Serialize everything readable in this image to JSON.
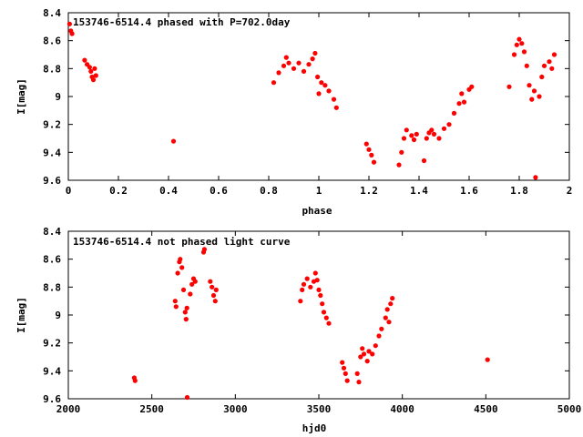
{
  "chart_data": [
    {
      "type": "scatter",
      "title": "153746-6514.4 phased with P=702.0day",
      "xlabel": "phase",
      "ylabel": "I[mag]",
      "xlim": [
        0,
        2
      ],
      "ylim": [
        9.6,
        8.4
      ],
      "y_inverted": true,
      "xticks": [
        "0",
        "0.2",
        "0.4",
        "0.6",
        "0.8",
        "1",
        "1.2",
        "1.4",
        "1.6",
        "1.8",
        "2"
      ],
      "yticks": [
        "8.4",
        "8.6",
        "8.8",
        "9",
        "9.2",
        "9.4",
        "9.6"
      ],
      "marker_color": "#ff0000",
      "points": [
        [
          0.005,
          8.48
        ],
        [
          0.01,
          8.53
        ],
        [
          0.015,
          8.55
        ],
        [
          0.065,
          8.74
        ],
        [
          0.075,
          8.77
        ],
        [
          0.085,
          8.79
        ],
        [
          0.09,
          8.82
        ],
        [
          0.095,
          8.86
        ],
        [
          0.1,
          8.88
        ],
        [
          0.105,
          8.8
        ],
        [
          0.11,
          8.85
        ],
        [
          0.42,
          9.32
        ],
        [
          0.82,
          8.9
        ],
        [
          0.84,
          8.83
        ],
        [
          0.86,
          8.78
        ],
        [
          0.87,
          8.72
        ],
        [
          0.88,
          8.76
        ],
        [
          0.9,
          8.8
        ],
        [
          0.92,
          8.76
        ],
        [
          0.94,
          8.82
        ],
        [
          0.96,
          8.77
        ],
        [
          0.975,
          8.73
        ],
        [
          0.985,
          8.69
        ],
        [
          0.995,
          8.86
        ],
        [
          1.0,
          8.98
        ],
        [
          1.01,
          8.9
        ],
        [
          1.025,
          8.92
        ],
        [
          1.04,
          8.96
        ],
        [
          1.06,
          9.02
        ],
        [
          1.07,
          9.08
        ],
        [
          1.19,
          9.34
        ],
        [
          1.2,
          9.38
        ],
        [
          1.21,
          9.42
        ],
        [
          1.22,
          9.47
        ],
        [
          1.32,
          9.49
        ],
        [
          1.33,
          9.4
        ],
        [
          1.34,
          9.3
        ],
        [
          1.35,
          9.24
        ],
        [
          1.37,
          9.28
        ],
        [
          1.38,
          9.31
        ],
        [
          1.39,
          9.27
        ],
        [
          1.42,
          9.46
        ],
        [
          1.43,
          9.3
        ],
        [
          1.44,
          9.26
        ],
        [
          1.45,
          9.24
        ],
        [
          1.46,
          9.27
        ],
        [
          1.48,
          9.3
        ],
        [
          1.5,
          9.23
        ],
        [
          1.52,
          9.2
        ],
        [
          1.54,
          9.12
        ],
        [
          1.56,
          9.05
        ],
        [
          1.57,
          8.98
        ],
        [
          1.58,
          9.04
        ],
        [
          1.6,
          8.95
        ],
        [
          1.61,
          8.93
        ],
        [
          1.76,
          8.93
        ],
        [
          1.78,
          8.7
        ],
        [
          1.79,
          8.63
        ],
        [
          1.8,
          8.59
        ],
        [
          1.81,
          8.62
        ],
        [
          1.82,
          8.68
        ],
        [
          1.83,
          8.78
        ],
        [
          1.84,
          8.92
        ],
        [
          1.85,
          9.02
        ],
        [
          1.86,
          8.96
        ],
        [
          1.865,
          9.58
        ],
        [
          1.88,
          9.0
        ],
        [
          1.89,
          8.86
        ],
        [
          1.9,
          8.78
        ],
        [
          1.92,
          8.75
        ],
        [
          1.93,
          8.8
        ],
        [
          1.94,
          8.7
        ]
      ]
    },
    {
      "type": "scatter",
      "title": "153746-6514.4 not phased light curve",
      "xlabel": "hjd0",
      "ylabel": "I[mag]",
      "xlim": [
        2000,
        5000
      ],
      "ylim": [
        9.6,
        8.4
      ],
      "y_inverted": true,
      "xticks": [
        "2000",
        "2500",
        "3000",
        "3500",
        "4000",
        "4500",
        "5000"
      ],
      "yticks": [
        "8.4",
        "8.6",
        "8.8",
        "9",
        "9.2",
        "9.4",
        "9.6"
      ],
      "marker_color": "#ff0000",
      "points": [
        [
          2395,
          9.45
        ],
        [
          2400,
          9.47
        ],
        [
          2640,
          8.9
        ],
        [
          2645,
          8.94
        ],
        [
          2655,
          8.7
        ],
        [
          2665,
          8.62
        ],
        [
          2670,
          8.6
        ],
        [
          2680,
          8.66
        ],
        [
          2690,
          8.82
        ],
        [
          2700,
          8.98
        ],
        [
          2705,
          9.03
        ],
        [
          2710,
          8.95
        ],
        [
          2712,
          9.59
        ],
        [
          2730,
          8.85
        ],
        [
          2740,
          8.78
        ],
        [
          2750,
          8.74
        ],
        [
          2760,
          8.76
        ],
        [
          2810,
          8.55
        ],
        [
          2815,
          8.53
        ],
        [
          2850,
          8.76
        ],
        [
          2860,
          8.8
        ],
        [
          2870,
          8.86
        ],
        [
          2880,
          8.9
        ],
        [
          2885,
          8.82
        ],
        [
          3390,
          8.9
        ],
        [
          3400,
          8.82
        ],
        [
          3410,
          8.78
        ],
        [
          3430,
          8.74
        ],
        [
          3450,
          8.8
        ],
        [
          3470,
          8.76
        ],
        [
          3480,
          8.7
        ],
        [
          3490,
          8.75
        ],
        [
          3500,
          8.82
        ],
        [
          3510,
          8.86
        ],
        [
          3520,
          8.92
        ],
        [
          3530,
          8.98
        ],
        [
          3545,
          9.02
        ],
        [
          3560,
          9.06
        ],
        [
          3640,
          9.34
        ],
        [
          3650,
          9.38
        ],
        [
          3660,
          9.42
        ],
        [
          3670,
          9.47
        ],
        [
          3730,
          9.42
        ],
        [
          3740,
          9.48
        ],
        [
          3750,
          9.3
        ],
        [
          3760,
          9.24
        ],
        [
          3770,
          9.28
        ],
        [
          3790,
          9.33
        ],
        [
          3800,
          9.26
        ],
        [
          3820,
          9.28
        ],
        [
          3840,
          9.22
        ],
        [
          3860,
          9.15
        ],
        [
          3875,
          9.1
        ],
        [
          3900,
          9.02
        ],
        [
          3910,
          8.96
        ],
        [
          3920,
          9.05
        ],
        [
          3930,
          8.92
        ],
        [
          3940,
          8.88
        ],
        [
          4510,
          9.32
        ]
      ]
    }
  ]
}
